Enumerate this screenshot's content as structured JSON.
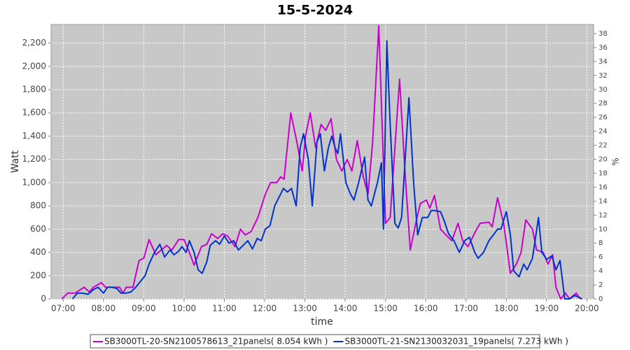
{
  "chart_data": {
    "type": "line",
    "title": "15-5-2024",
    "x_label": "time",
    "y_label": "Watt",
    "y2_label": "%",
    "xlim": [
      "06:42",
      "20:10"
    ],
    "xticks": [
      "07:00",
      "08:00",
      "09:00",
      "10:00",
      "11:00",
      "12:00",
      "13:00",
      "14:00",
      "15:00",
      "16:00",
      "17:00",
      "18:00",
      "19:00",
      "20:00"
    ],
    "ylim": [
      0,
      2360
    ],
    "yticks": [
      0,
      200,
      400,
      600,
      800,
      {
        "value": 1000,
        "label": "1,000"
      },
      {
        "value": 1200,
        "label": "1,200"
      },
      {
        "value": 1400,
        "label": "1,400"
      },
      {
        "value": 1600,
        "label": "1,600"
      },
      {
        "value": 1800,
        "label": "1,800"
      },
      {
        "value": 2000,
        "label": "2,000"
      },
      {
        "value": 2200,
        "label": "2,200"
      }
    ],
    "y2lim": [
      0,
      39.3
    ],
    "y2ticks": [
      0,
      2,
      4,
      6,
      8,
      10,
      12,
      14,
      16,
      18,
      20,
      22,
      24,
      26,
      28,
      30,
      32,
      34,
      36,
      38
    ],
    "grid": true,
    "series": [
      {
        "name": "SB3000TL-20-SN2100578613_21panels( 8.054 kWh )",
        "color": "#cc00cc",
        "x": [
          "06:58",
          "07:07",
          "07:18",
          "07:31",
          "07:39",
          "07:45",
          "07:57",
          "08:03",
          "08:13",
          "08:24",
          "08:29",
          "08:34",
          "08:44",
          "08:53",
          "09:00",
          "09:08",
          "09:18",
          "09:26",
          "09:34",
          "09:42",
          "09:52",
          "10:00",
          "10:08",
          "10:15",
          "10:26",
          "10:34",
          "10:41",
          "10:50",
          "10:58",
          "11:05",
          "11:16",
          "11:24",
          "11:31",
          "11:40",
          "11:50",
          "12:01",
          "12:09",
          "12:18",
          "12:24",
          "12:29",
          "12:39",
          "12:48",
          "12:56",
          "13:01",
          "13:08",
          "13:16",
          "13:24",
          "13:31",
          "13:39",
          "13:47",
          "13:55",
          "14:03",
          "14:10",
          "14:18",
          "14:27",
          "14:34",
          "14:41",
          "14:50",
          "15:00",
          "15:07",
          "15:21",
          "15:29",
          "15:37",
          "15:47",
          "15:52",
          "16:01",
          "16:06",
          "16:13",
          "16:22",
          "16:30",
          "16:39",
          "16:48",
          "16:55",
          "17:03",
          "17:14",
          "17:21",
          "17:34",
          "17:39",
          "17:47",
          "17:56",
          "18:06",
          "18:15",
          "18:22",
          "18:29",
          "18:39",
          "18:45",
          "18:55",
          "19:02",
          "19:09",
          "19:14",
          "19:21",
          "19:28",
          "19:34",
          "19:44",
          "19:50"
        ],
        "values": [
          0,
          50,
          50,
          100,
          60,
          100,
          140,
          100,
          100,
          100,
          50,
          100,
          100,
          330,
          350,
          510,
          380,
          420,
          460,
          420,
          510,
          510,
          400,
          290,
          450,
          470,
          560,
          520,
          560,
          540,
          450,
          600,
          550,
          580,
          700,
          900,
          1000,
          1000,
          1050,
          1030,
          1600,
          1350,
          1100,
          1400,
          1600,
          1300,
          1500,
          1450,
          1550,
          1200,
          1100,
          1200,
          1100,
          1360,
          1050,
          900,
          1350,
          2350,
          650,
          700,
          1890,
          1100,
          420,
          700,
          820,
          850,
          780,
          890,
          600,
          550,
          500,
          650,
          500,
          450,
          580,
          650,
          660,
          620,
          870,
          650,
          220,
          300,
          400,
          680,
          600,
          420,
          400,
          300,
          380,
          100,
          0,
          50,
          0,
          50,
          0
        ]
      },
      {
        "name": "SB3000TL-21-SN2130032031_19panels( 7.273 kWh )",
        "color": "#0033cc",
        "x": [
          "07:14",
          "07:21",
          "07:28",
          "07:37",
          "07:45",
          "07:52",
          "08:00",
          "08:06",
          "08:13",
          "08:20",
          "08:26",
          "08:34",
          "08:41",
          "08:48",
          "08:55",
          "09:02",
          "09:08",
          "09:16",
          "09:24",
          "09:31",
          "09:39",
          "09:45",
          "09:52",
          "09:57",
          "10:03",
          "10:08",
          "10:15",
          "10:21",
          "10:27",
          "10:34",
          "10:39",
          "10:47",
          "10:53",
          "11:00",
          "11:07",
          "11:14",
          "11:21",
          "11:28",
          "11:35",
          "11:42",
          "11:49",
          "11:55",
          "12:01",
          "12:08",
          "12:15",
          "12:22",
          "12:28",
          "12:34",
          "12:40",
          "12:47",
          "12:53",
          "12:58",
          "13:05",
          "13:11",
          "13:18",
          "13:23",
          "13:29",
          "13:35",
          "13:40",
          "13:45",
          "13:49",
          "13:53",
          "14:01",
          "14:08",
          "14:13",
          "14:20",
          "14:29",
          "14:34",
          "14:39",
          "14:48",
          "14:54",
          "14:57",
          "15:02",
          "15:07",
          "15:14",
          "15:19",
          "15:24",
          "15:35",
          "15:42",
          "15:48",
          "15:55",
          "16:03",
          "16:08",
          "16:13",
          "16:22",
          "16:27",
          "16:34",
          "16:42",
          "16:50",
          "16:58",
          "17:05",
          "17:13",
          "17:18",
          "17:26",
          "17:34",
          "17:42",
          "17:47",
          "17:52",
          "18:00",
          "18:06",
          "18:11",
          "18:19",
          "18:26",
          "18:31",
          "18:39",
          "18:48",
          "18:53",
          "19:00",
          "19:08",
          "19:14",
          "19:20",
          "19:27",
          "19:34",
          "19:42",
          "19:53"
        ],
        "values": [
          0,
          50,
          50,
          40,
          80,
          100,
          50,
          100,
          100,
          90,
          50,
          50,
          60,
          100,
          150,
          200,
          300,
          400,
          470,
          360,
          420,
          380,
          410,
          450,
          400,
          500,
          400,
          250,
          220,
          320,
          460,
          500,
          470,
          540,
          480,
          500,
          420,
          460,
          500,
          430,
          520,
          500,
          600,
          630,
          800,
          880,
          950,
          920,
          950,
          800,
          1300,
          1420,
          1200,
          800,
          1350,
          1420,
          1100,
          1300,
          1400,
          1300,
          1250,
          1420,
          1000,
          900,
          850,
          1000,
          1220,
          850,
          800,
          1000,
          1170,
          600,
          2220,
          1500,
          650,
          610,
          700,
          1730,
          1000,
          550,
          700,
          700,
          760,
          760,
          750,
          680,
          560,
          500,
          400,
          500,
          530,
          400,
          350,
          400,
          500,
          560,
          600,
          600,
          750,
          550,
          240,
          190,
          300,
          250,
          350,
          700,
          400,
          340,
          370,
          250,
          330,
          0,
          0,
          30,
          0
        ]
      }
    ]
  }
}
